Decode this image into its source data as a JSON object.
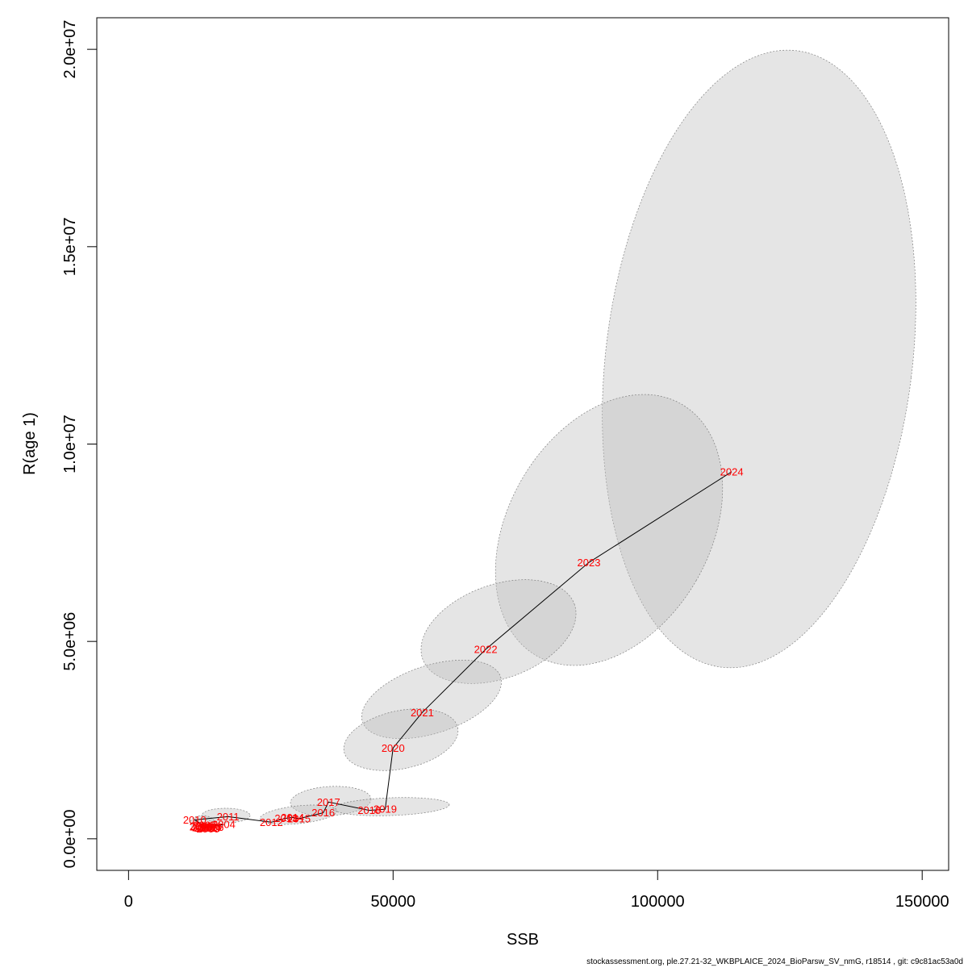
{
  "chart_data": {
    "type": "scatter",
    "title": "",
    "xlabel": "SSB",
    "ylabel": "R(age 1)",
    "xlim": [
      -6000,
      155000
    ],
    "ylim": [
      -800000,
      20800000
    ],
    "xticks": [
      0,
      50000,
      100000,
      150000
    ],
    "xtick_labels": [
      "0",
      "50000",
      "100000",
      "150000"
    ],
    "yticks": [
      0,
      5000000,
      10000000,
      15000000,
      20000000
    ],
    "ytick_labels": [
      "0.0e+00",
      "5.0e+06",
      "1.0e+07",
      "1.5e+07",
      "2.0e+07"
    ],
    "grid": false,
    "legend": "none",
    "series": [
      {
        "points": [
          {
            "year": "2000",
            "ssb": 15000,
            "r": 250000
          },
          {
            "year": "2001",
            "ssb": 14600,
            "r": 270000
          },
          {
            "year": "2002",
            "ssb": 14200,
            "r": 280000
          },
          {
            "year": "2003",
            "ssb": 15400,
            "r": 300000
          },
          {
            "year": "2004",
            "ssb": 18000,
            "r": 360000
          },
          {
            "year": "2005",
            "ssb": 13800,
            "r": 320000
          },
          {
            "year": "2006",
            "ssb": 15800,
            "r": 290000
          },
          {
            "year": "2007",
            "ssb": 14400,
            "r": 340000
          },
          {
            "year": "2008",
            "ssb": 13700,
            "r": 300000
          },
          {
            "year": "2009",
            "ssb": 15200,
            "r": 260000
          },
          {
            "year": "2010",
            "ssb": 12500,
            "r": 480000
          },
          {
            "year": "2011",
            "ssb": 18800,
            "r": 560000
          },
          {
            "year": "2012",
            "ssb": 27000,
            "r": 420000
          },
          {
            "year": "2013",
            "ssb": 29800,
            "r": 520000
          },
          {
            "year": "2014",
            "ssb": 31000,
            "r": 540000
          },
          {
            "year": "2015",
            "ssb": 32200,
            "r": 510000
          },
          {
            "year": "2016",
            "ssb": 36800,
            "r": 660000
          },
          {
            "year": "2017",
            "ssb": 37800,
            "r": 930000
          },
          {
            "year": "2018",
            "ssb": 45500,
            "r": 720000
          },
          {
            "year": "2019",
            "ssb": 48500,
            "r": 750000
          },
          {
            "year": "2020",
            "ssb": 50000,
            "r": 2300000
          },
          {
            "year": "2021",
            "ssb": 55500,
            "r": 3200000
          },
          {
            "year": "2022",
            "ssb": 67500,
            "r": 4800000
          },
          {
            "year": "2023",
            "ssb": 87000,
            "r": 7000000
          },
          {
            "year": "2024",
            "ssb": 114000,
            "r": 9300000
          }
        ]
      }
    ],
    "colors": {
      "year_labels": "#ff0000",
      "trajectory": "#000000",
      "ellipse_fill": "#bebebe",
      "ellipse_stroke": "#808080"
    }
  },
  "footer": {
    "text": "stockassessment.org, ple.27.21-32_WKBPLAICE_2024_BioParsw_SV_nmG, r18514 , git: c9c81ac53a0d"
  }
}
